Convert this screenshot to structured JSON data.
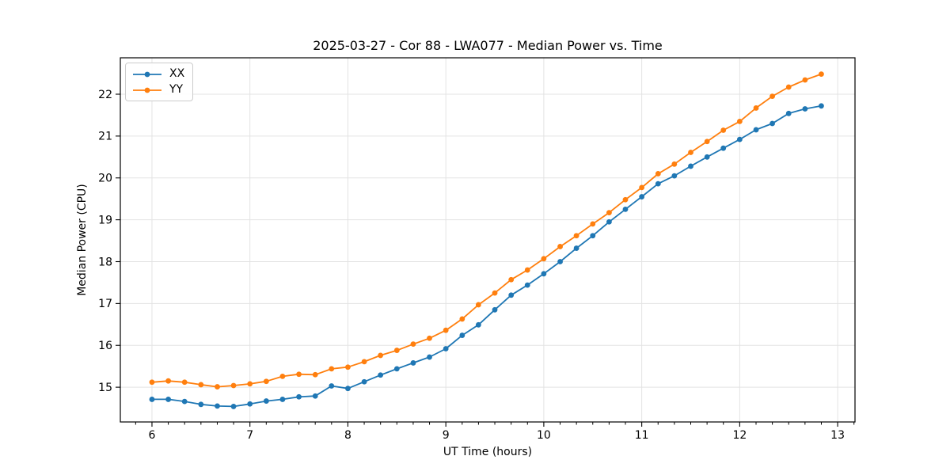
{
  "chart_data": {
    "type": "line",
    "title": "2025-03-27 - Cor 88 - LWA077 - Median Power vs. Time",
    "xlabel": "UT Time (hours)",
    "ylabel": "Median Power (CPU)",
    "xlim": [
      5.677,
      13.177
    ],
    "ylim": [
      14.17,
      22.87
    ],
    "x_ticks": [
      6,
      7,
      8,
      9,
      10,
      11,
      12,
      13
    ],
    "y_ticks": [
      15,
      16,
      17,
      18,
      19,
      20,
      21,
      22
    ],
    "x_minor_step": 0.1666667,
    "grid": true,
    "grid_color": "#e3e3e3",
    "spine_color": "#000000",
    "legend_position": "upper-left",
    "x": [
      6.0,
      6.167,
      6.333,
      6.5,
      6.667,
      6.833,
      7.0,
      7.167,
      7.333,
      7.5,
      7.667,
      7.833,
      8.0,
      8.167,
      8.333,
      8.5,
      8.667,
      8.833,
      9.0,
      9.167,
      9.333,
      9.5,
      9.667,
      9.833,
      10.0,
      10.167,
      10.333,
      10.5,
      10.667,
      10.833,
      11.0,
      11.167,
      11.333,
      11.5,
      11.667,
      11.833,
      12.0,
      12.167,
      12.333,
      12.5,
      12.667,
      12.833
    ],
    "series": [
      {
        "name": "XX",
        "color": "#1f77b4",
        "values": [
          14.71,
          14.71,
          14.66,
          14.59,
          14.55,
          14.54,
          14.6,
          14.67,
          14.71,
          14.77,
          14.79,
          15.03,
          14.97,
          15.13,
          15.29,
          15.44,
          15.58,
          15.72,
          15.92,
          16.24,
          16.49,
          16.85,
          17.2,
          17.44,
          17.71,
          18.0,
          18.32,
          18.62,
          18.95,
          19.25,
          19.55,
          19.86,
          20.05,
          20.28,
          20.5,
          20.71,
          20.92,
          21.15,
          21.3,
          21.54,
          21.65,
          21.72
        ]
      },
      {
        "name": "YY",
        "color": "#ff7f0e",
        "values": [
          15.12,
          15.15,
          15.12,
          15.06,
          15.01,
          15.04,
          15.08,
          15.14,
          15.26,
          15.31,
          15.3,
          15.44,
          15.48,
          15.61,
          15.76,
          15.88,
          16.03,
          16.17,
          16.36,
          16.63,
          16.97,
          17.25,
          17.57,
          17.8,
          18.07,
          18.36,
          18.62,
          18.9,
          19.17,
          19.48,
          19.77,
          20.1,
          20.33,
          20.61,
          20.87,
          21.14,
          21.35,
          21.67,
          21.95,
          22.17,
          22.34,
          22.48
        ]
      }
    ]
  }
}
